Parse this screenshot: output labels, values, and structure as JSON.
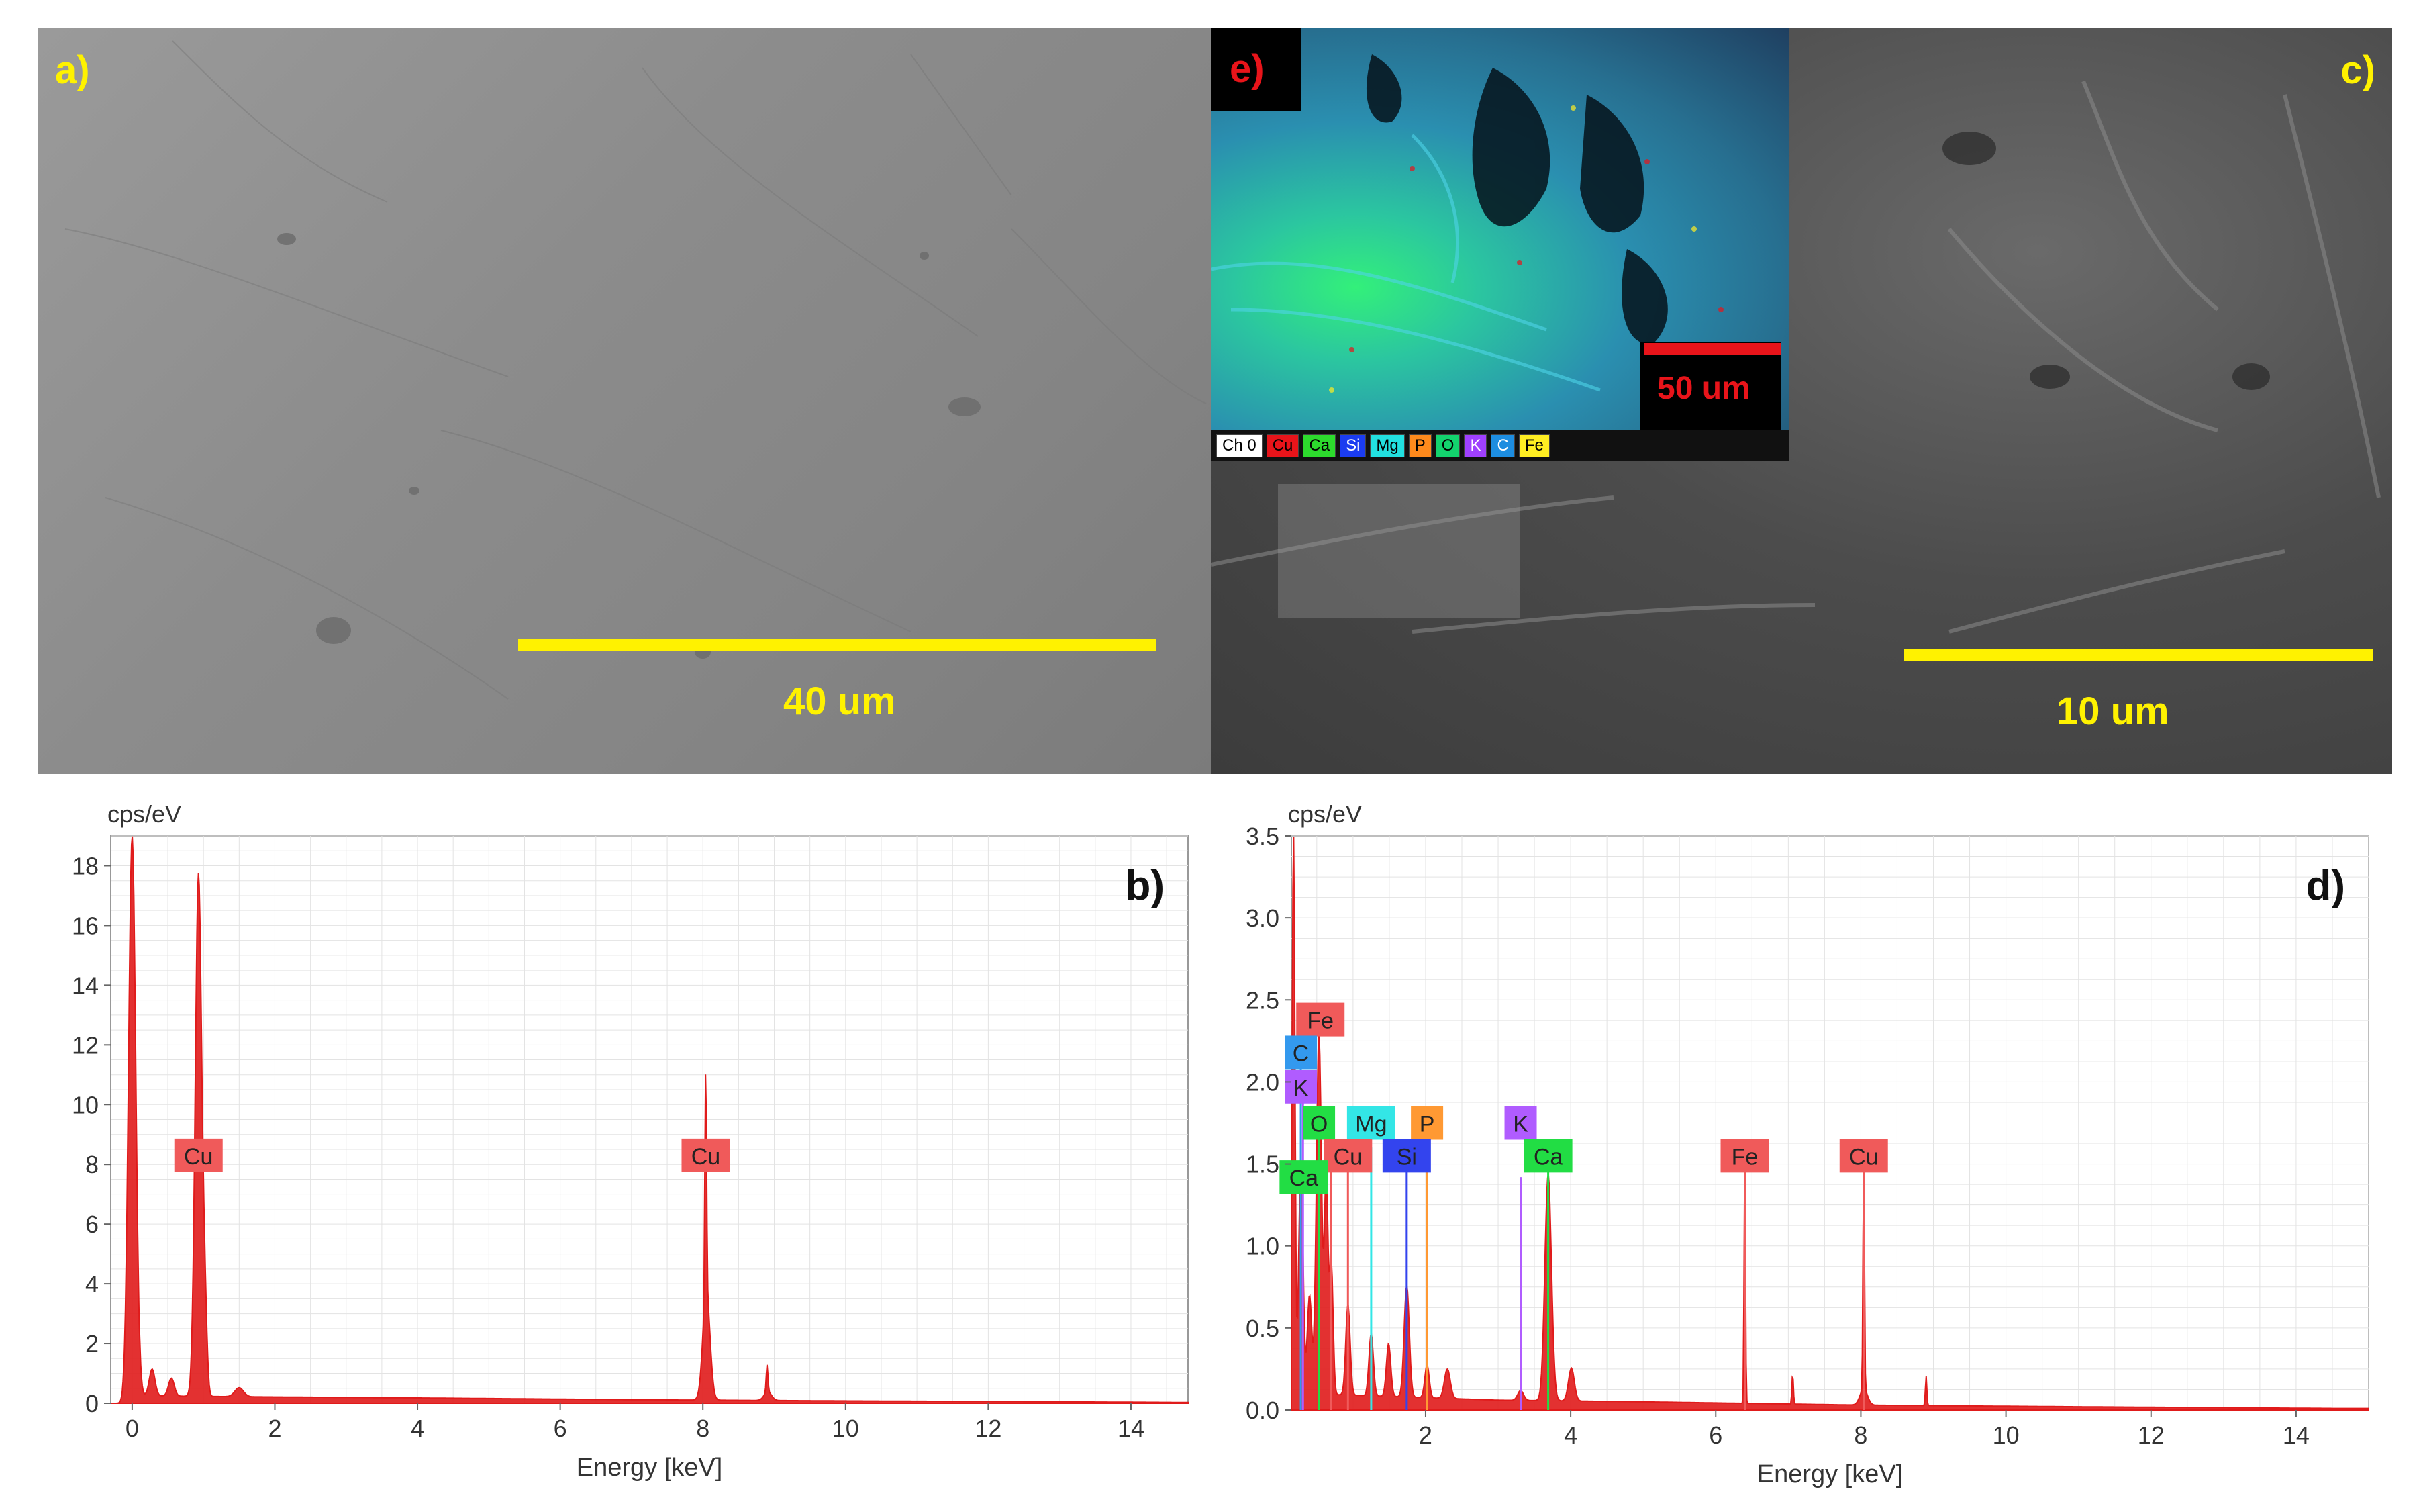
{
  "panels": {
    "a": {
      "letter": "a)",
      "scale_label": "40 um"
    },
    "c": {
      "letter": "c)",
      "scale_label": "10 um"
    },
    "e": {
      "letter": "e)",
      "scale_label": "50 um",
      "legend": [
        {
          "label": "Ch 0",
          "color": "#ffffff"
        },
        {
          "label": "Cu",
          "color": "#e8141a"
        },
        {
          "label": "Ca",
          "color": "#2ddb2d"
        },
        {
          "label": "Si",
          "color": "#1b3cf0"
        },
        {
          "label": "Mg",
          "color": "#22e0e0"
        },
        {
          "label": "P",
          "color": "#ff8a1c"
        },
        {
          "label": "O",
          "color": "#13d36e"
        },
        {
          "label": "K",
          "color": "#a040ff"
        },
        {
          "label": "C",
          "color": "#1d8de0"
        },
        {
          "label": "Fe",
          "color": "#ffee22"
        }
      ]
    }
  },
  "chart_data": [
    {
      "panel_letter": "b)",
      "type": "line",
      "ylabel": "cps/eV",
      "xlabel": "Energy [keV]",
      "xlim": [
        -0.3,
        14.8
      ],
      "ylim": [
        0,
        19
      ],
      "xticks": [
        0,
        2,
        4,
        6,
        8,
        10,
        12,
        14
      ],
      "yticks": [
        0,
        2,
        4,
        6,
        8,
        10,
        12,
        14,
        16,
        18
      ],
      "grid": true,
      "series_color": "#e01b1b",
      "peaks": [
        {
          "x": 0.0,
          "y": 19.0,
          "w": 0.05
        },
        {
          "x": 0.28,
          "y": 0.9,
          "w": 0.04
        },
        {
          "x": 0.55,
          "y": 0.6,
          "w": 0.04
        },
        {
          "x": 0.93,
          "y": 17.5,
          "w": 0.045
        },
        {
          "x": 1.02,
          "y": 2.5,
          "w": 0.03
        },
        {
          "x": 1.5,
          "y": 0.3,
          "w": 0.06
        },
        {
          "x": 8.04,
          "y": 7.6,
          "w": 0.012
        },
        {
          "x": 8.05,
          "y": 3.6,
          "w": 0.05
        },
        {
          "x": 8.9,
          "y": 0.9,
          "w": 0.012
        },
        {
          "x": 8.91,
          "y": 0.3,
          "w": 0.05
        }
      ],
      "baseline": [
        [
          0.1,
          0.25
        ],
        [
          1.5,
          0.22
        ],
        [
          4,
          0.18
        ],
        [
          7,
          0.12
        ],
        [
          10,
          0.08
        ],
        [
          13,
          0.05
        ],
        [
          14.6,
          0.03
        ]
      ],
      "annotations": [
        {
          "label": "Cu",
          "x": 0.93,
          "y": 8.3,
          "color": "#f05a5a"
        },
        {
          "label": "Cu",
          "x": 8.04,
          "y": 8.3,
          "color": "#f05a5a"
        }
      ]
    },
    {
      "panel_letter": "d)",
      "type": "line",
      "ylabel": "cps/eV",
      "xlabel": "Energy [keV]",
      "xlim": [
        0.15,
        15
      ],
      "ylim": [
        0,
        3.5
      ],
      "xticks": [
        2,
        4,
        6,
        8,
        10,
        12,
        14
      ],
      "yticks": [
        0.0,
        0.5,
        1.0,
        1.5,
        2.0,
        2.5,
        3.0,
        3.5
      ],
      "ytick_labels": [
        "0.0",
        "0.5",
        "1.0",
        "1.5",
        "2.0",
        "2.5",
        "3.0",
        "3.5"
      ],
      "grid": true,
      "series_color": "#e01b1b",
      "peaks": [
        {
          "x": 0.18,
          "y": 3.5,
          "w": 0.02
        },
        {
          "x": 0.28,
          "y": 1.5,
          "w": 0.03
        },
        {
          "x": 0.4,
          "y": 0.6,
          "w": 0.03
        },
        {
          "x": 0.53,
          "y": 2.2,
          "w": 0.035
        },
        {
          "x": 0.63,
          "y": 1.3,
          "w": 0.025
        },
        {
          "x": 0.7,
          "y": 0.8,
          "w": 0.025
        },
        {
          "x": 0.93,
          "y": 0.55,
          "w": 0.03
        },
        {
          "x": 1.25,
          "y": 0.38,
          "w": 0.03
        },
        {
          "x": 1.49,
          "y": 0.32,
          "w": 0.03
        },
        {
          "x": 1.74,
          "y": 0.68,
          "w": 0.035
        },
        {
          "x": 2.02,
          "y": 0.2,
          "w": 0.03
        },
        {
          "x": 2.3,
          "y": 0.18,
          "w": 0.04
        },
        {
          "x": 3.31,
          "y": 0.06,
          "w": 0.04
        },
        {
          "x": 3.69,
          "y": 1.38,
          "w": 0.045
        },
        {
          "x": 4.01,
          "y": 0.2,
          "w": 0.04
        },
        {
          "x": 6.4,
          "y": 1.42,
          "w": 0.01
        },
        {
          "x": 7.06,
          "y": 0.18,
          "w": 0.01
        },
        {
          "x": 8.04,
          "y": 1.42,
          "w": 0.01
        },
        {
          "x": 8.04,
          "y": 0.1,
          "w": 0.05
        },
        {
          "x": 8.9,
          "y": 0.18,
          "w": 0.01
        }
      ],
      "baseline": [
        [
          0.3,
          0.1
        ],
        [
          1,
          0.09
        ],
        [
          3,
          0.06
        ],
        [
          5,
          0.05
        ],
        [
          8,
          0.03
        ],
        [
          11,
          0.02
        ],
        [
          14.5,
          0.01
        ]
      ],
      "annotations": [
        {
          "label": "Fe",
          "x": 0.55,
          "y": 2.38,
          "color": "#f05a5a"
        },
        {
          "label": "C",
          "x": 0.28,
          "y": 2.18,
          "color": "#3399ee"
        },
        {
          "label": "K",
          "x": 0.28,
          "y": 1.97,
          "color": "#b05cff"
        },
        {
          "label": "O",
          "x": 0.53,
          "y": 1.75,
          "color": "#22dd44"
        },
        {
          "label": "Mg",
          "x": 1.25,
          "y": 1.75,
          "color": "#33e6e6"
        },
        {
          "label": "P",
          "x": 2.02,
          "y": 1.75,
          "color": "#ff9933"
        },
        {
          "label": "K",
          "x": 3.31,
          "y": 1.75,
          "color": "#b05cff"
        },
        {
          "label": "Cu",
          "x": 0.93,
          "y": 1.55,
          "color": "#f05a5a"
        },
        {
          "label": "Si",
          "x": 1.74,
          "y": 1.55,
          "color": "#3344ee"
        },
        {
          "label": "Ca",
          "x": 3.69,
          "y": 1.55,
          "color": "#22dd44"
        },
        {
          "label": "Fe",
          "x": 6.4,
          "y": 1.55,
          "color": "#f05a5a"
        },
        {
          "label": "Cu",
          "x": 8.04,
          "y": 1.55,
          "color": "#f05a5a"
        },
        {
          "label": "Ca",
          "x": 0.32,
          "y": 1.42,
          "color": "#22dd44"
        }
      ],
      "lines": [
        {
          "x": 0.28,
          "y": 2.1,
          "color": "#3399ee"
        },
        {
          "x": 0.31,
          "y": 1.9,
          "color": "#b05cff"
        },
        {
          "x": 0.53,
          "y": 1.7,
          "color": "#22dd44"
        },
        {
          "x": 0.7,
          "y": 1.45,
          "color": "#f05a5a"
        },
        {
          "x": 0.93,
          "y": 1.45,
          "color": "#f05a5a"
        },
        {
          "x": 1.25,
          "y": 1.6,
          "color": "#33e6e6"
        },
        {
          "x": 1.74,
          "y": 1.45,
          "color": "#3344ee"
        },
        {
          "x": 2.02,
          "y": 1.6,
          "color": "#ff9933"
        },
        {
          "x": 3.31,
          "y": 1.42,
          "color": "#b05cff"
        },
        {
          "x": 3.69,
          "y": 1.45,
          "color": "#22dd44"
        },
        {
          "x": 6.4,
          "y": 1.45,
          "color": "#f05a5a"
        },
        {
          "x": 8.04,
          "y": 1.45,
          "color": "#f05a5a"
        }
      ]
    }
  ]
}
